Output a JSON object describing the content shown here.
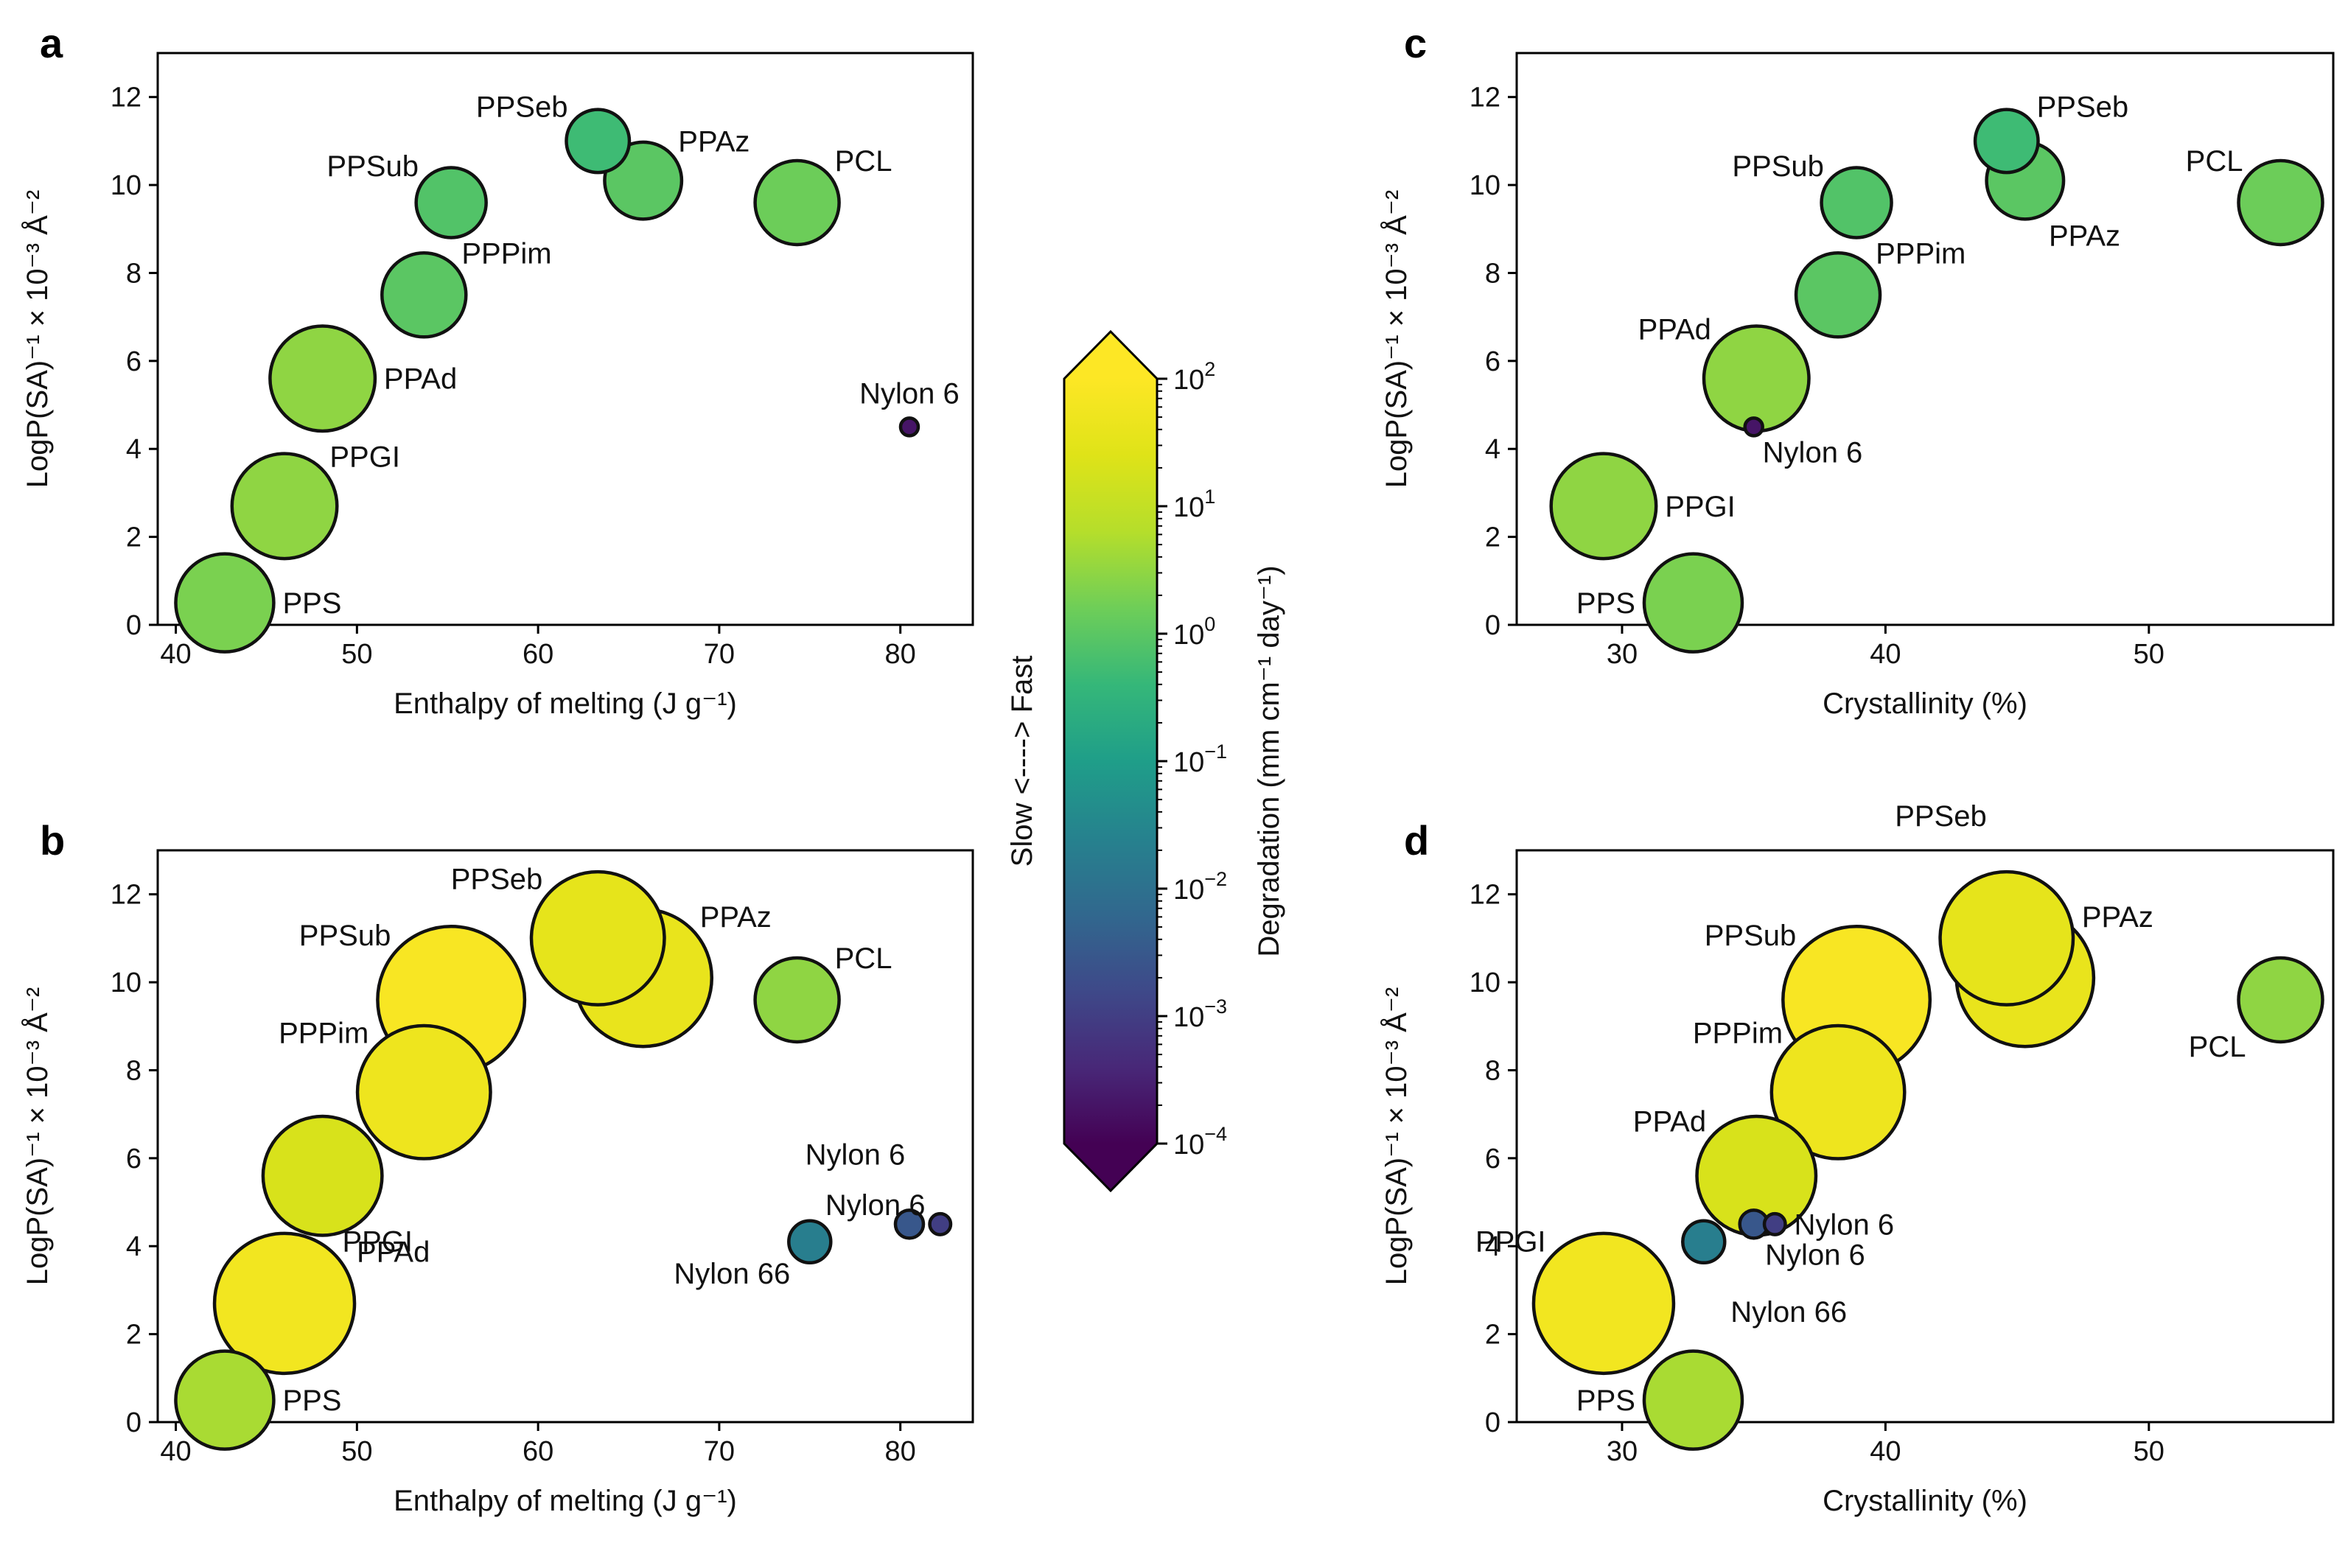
{
  "figure": {
    "colorbar": {
      "label": "Degradation (mm cm⁻¹ day⁻¹)",
      "side_label": "Slow <----> Fast",
      "ticks": [
        {
          "base": "10",
          "exp": "2",
          "value": 100
        },
        {
          "base": "10",
          "exp": "1",
          "value": 10
        },
        {
          "base": "10",
          "exp": "0",
          "value": 1
        },
        {
          "base": "10",
          "exp": "−1",
          "value": 0.1
        },
        {
          "base": "10",
          "exp": "−2",
          "value": 0.01
        },
        {
          "base": "10",
          "exp": "−3",
          "value": 0.001
        },
        {
          "base": "10",
          "exp": "−4",
          "value": 0.0001
        }
      ],
      "colormap": "viridis",
      "range": [
        0.0001,
        100
      ],
      "extend": "both"
    }
  },
  "chart_data": [
    {
      "panel": "a",
      "type": "scatter",
      "xlabel": "Enthalpy of melting (J g⁻¹)",
      "ylabel": "LogP(SA)⁻¹ × 10⁻³ Å⁻²",
      "xlim": [
        39,
        84
      ],
      "ylim": [
        0,
        13
      ],
      "xticks": [
        40,
        50,
        60,
        70,
        80
      ],
      "yticks": [
        0,
        2,
        4,
        6,
        8,
        10,
        12
      ],
      "points": [
        {
          "label": "PPS",
          "x": 42.7,
          "y": 0.5,
          "degradation": 2,
          "size": 0.7,
          "label_pos": "right"
        },
        {
          "label": "PPGI",
          "x": 46.0,
          "y": 2.7,
          "degradation": 3,
          "size": 0.75,
          "label_pos": "upper-right"
        },
        {
          "label": "PPAd",
          "x": 48.1,
          "y": 5.6,
          "degradation": 3,
          "size": 0.75,
          "label_pos": "right"
        },
        {
          "label": "PPPim",
          "x": 53.7,
          "y": 7.5,
          "degradation": 1,
          "size": 0.6,
          "label_pos": "upper-right"
        },
        {
          "label": "PPSub",
          "x": 55.2,
          "y": 9.6,
          "degradation": 0.8,
          "size": 0.5,
          "label_pos": "upper-left"
        },
        {
          "label": "PPSeb",
          "x": 63.3,
          "y": 11.0,
          "degradation": 0.5,
          "size": 0.45,
          "label_pos": "upper-left"
        },
        {
          "label": "PPAz",
          "x": 65.8,
          "y": 10.1,
          "degradation": 1,
          "size": 0.55,
          "label_pos": "upper-right"
        },
        {
          "label": "PCL",
          "x": 74.3,
          "y": 9.6,
          "degradation": 1.5,
          "size": 0.6,
          "label_pos": "upper-right"
        },
        {
          "label": "Nylon 6",
          "x": 80.5,
          "y": 4.5,
          "degradation": 0.0002,
          "size": 0.1,
          "label_pos": "above"
        }
      ]
    },
    {
      "panel": "b",
      "type": "scatter",
      "xlabel": "Enthalpy of melting (J g⁻¹)",
      "ylabel": "LogP(SA)⁻¹ × 10⁻³ Å⁻²",
      "xlim": [
        39,
        84
      ],
      "ylim": [
        0,
        13
      ],
      "xticks": [
        40,
        50,
        60,
        70,
        80
      ],
      "yticks": [
        0,
        2,
        4,
        6,
        8,
        10,
        12
      ],
      "points": [
        {
          "label": "PPS",
          "x": 42.7,
          "y": 0.5,
          "degradation": 5,
          "size": 0.7,
          "label_pos": "right"
        },
        {
          "label": "PPGI",
          "x": 46.0,
          "y": 2.7,
          "degradation": 60,
          "size": 1.0,
          "label_pos": "upper-right"
        },
        {
          "label": "PPAd",
          "x": 48.1,
          "y": 5.6,
          "degradation": 20,
          "size": 0.85,
          "label_pos": "lower-right"
        },
        {
          "label": "PPPim",
          "x": 53.7,
          "y": 7.5,
          "degradation": 50,
          "size": 0.95,
          "label_pos": "upper-left"
        },
        {
          "label": "PPSub",
          "x": 55.2,
          "y": 9.6,
          "degradation": 80,
          "size": 1.05,
          "label_pos": "upper-left"
        },
        {
          "label": "PPSeb",
          "x": 63.3,
          "y": 11.0,
          "degradation": 35,
          "size": 0.95,
          "label_pos": "upper-left"
        },
        {
          "label": "PPAz",
          "x": 65.8,
          "y": 10.1,
          "degradation": 40,
          "size": 0.98,
          "label_pos": "upper-right"
        },
        {
          "label": "PCL",
          "x": 74.3,
          "y": 9.6,
          "degradation": 3,
          "size": 0.6,
          "label_pos": "upper-right"
        },
        {
          "label": "Nylon 66",
          "x": 75.0,
          "y": 4.1,
          "degradation": 0.02,
          "size": 0.3,
          "label_pos": "lower-left"
        },
        {
          "label": "Nylon 6",
          "x": 80.5,
          "y": 4.5,
          "degradation": 0.003,
          "size": 0.2,
          "label_pos": "upper-left-high"
        },
        {
          "label": "Nylon 6",
          "x": 82.2,
          "y": 4.5,
          "degradation": 0.001,
          "size": 0.15,
          "label_pos": "upper-left"
        }
      ]
    },
    {
      "panel": "c",
      "type": "scatter",
      "xlabel": "Crystallinity (%)",
      "ylabel": "LogP(SA)⁻¹ × 10⁻³ Å⁻²",
      "xlim": [
        26,
        57
      ],
      "ylim": [
        0,
        13
      ],
      "xticks": [
        30,
        40,
        50
      ],
      "yticks": [
        0,
        2,
        4,
        6,
        8,
        10,
        12
      ],
      "points": [
        {
          "label": "PPS",
          "x": 32.7,
          "y": 0.5,
          "degradation": 2,
          "size": 0.7,
          "label_pos": "left"
        },
        {
          "label": "PPGI",
          "x": 29.3,
          "y": 2.7,
          "degradation": 3,
          "size": 0.75,
          "label_pos": "right"
        },
        {
          "label": "PPAd",
          "x": 35.1,
          "y": 5.6,
          "degradation": 3,
          "size": 0.75,
          "label_pos": "upper-left"
        },
        {
          "label": "Nylon 6",
          "x": 35.0,
          "y": 4.5,
          "degradation": 0.0002,
          "size": 0.1,
          "label_pos": "lower-right"
        },
        {
          "label": "PPPim",
          "x": 38.2,
          "y": 7.5,
          "degradation": 1,
          "size": 0.6,
          "label_pos": "upper-right"
        },
        {
          "label": "PPSub",
          "x": 38.9,
          "y": 9.6,
          "degradation": 0.8,
          "size": 0.5,
          "label_pos": "upper-left"
        },
        {
          "label": "PPSeb",
          "x": 44.6,
          "y": 11.0,
          "degradation": 0.5,
          "size": 0.45,
          "label_pos": "upper-right"
        },
        {
          "label": "PPAz",
          "x": 45.3,
          "y": 10.1,
          "degradation": 1,
          "size": 0.55,
          "label_pos": "lower-right"
        },
        {
          "label": "PCL",
          "x": 55.0,
          "y": 9.6,
          "degradation": 1.5,
          "size": 0.6,
          "label_pos": "upper-left"
        }
      ]
    },
    {
      "panel": "d",
      "type": "scatter",
      "xlabel": "Crystallinity (%)",
      "ylabel": "LogP(SA)⁻¹ × 10⁻³ Å⁻²",
      "xlim": [
        26,
        57
      ],
      "ylim": [
        0,
        13
      ],
      "xticks": [
        30,
        40,
        50
      ],
      "yticks": [
        0,
        2,
        4,
        6,
        8,
        10,
        12
      ],
      "points": [
        {
          "label": "PPS",
          "x": 32.7,
          "y": 0.5,
          "degradation": 5,
          "size": 0.7,
          "label_pos": "left"
        },
        {
          "label": "PPGI",
          "x": 29.3,
          "y": 2.7,
          "degradation": 60,
          "size": 1.0,
          "label_pos": "upper-left"
        },
        {
          "label": "PPAd",
          "x": 35.1,
          "y": 5.6,
          "degradation": 20,
          "size": 0.85,
          "label_pos": "upper-left"
        },
        {
          "label": "Nylon 66",
          "x": 33.1,
          "y": 4.1,
          "degradation": 0.02,
          "size": 0.3,
          "label_pos": "lower-right-far"
        },
        {
          "label": "Nylon 6",
          "x": 35.0,
          "y": 4.5,
          "degradation": 0.003,
          "size": 0.2,
          "label_pos": "lower-right"
        },
        {
          "label": "Nylon 6",
          "x": 35.8,
          "y": 4.5,
          "degradation": 0.001,
          "size": 0.15,
          "label_pos": "right"
        },
        {
          "label": "PPPim",
          "x": 38.2,
          "y": 7.5,
          "degradation": 50,
          "size": 0.95,
          "label_pos": "upper-left"
        },
        {
          "label": "PPSub",
          "x": 38.9,
          "y": 9.6,
          "degradation": 80,
          "size": 1.05,
          "label_pos": "upper-left"
        },
        {
          "label": "PPSeb",
          "x": 44.6,
          "y": 11.0,
          "degradation": 35,
          "size": 0.95,
          "label_pos": "upper-left-high"
        },
        {
          "label": "PPAz",
          "x": 45.3,
          "y": 10.1,
          "degradation": 40,
          "size": 0.98,
          "label_pos": "upper-right"
        },
        {
          "label": "PCL",
          "x": 55.0,
          "y": 9.6,
          "degradation": 3,
          "size": 0.6,
          "label_pos": "lower-left"
        }
      ]
    }
  ]
}
